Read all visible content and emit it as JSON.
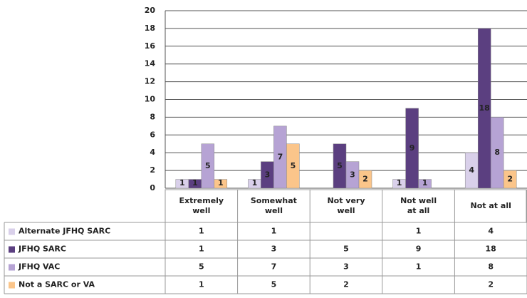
{
  "chart_data": {
    "type": "bar",
    "categories": [
      "Extremely well",
      "Somewhat well",
      "Not very well",
      "Not well at all",
      "Not at all"
    ],
    "series": [
      {
        "name": "Alternate JFHQ SARC",
        "color": "#d9d0ea",
        "values": [
          1,
          1,
          null,
          1,
          4
        ]
      },
      {
        "name": "JFHQ SARC",
        "color": "#5b3f80",
        "values": [
          1,
          3,
          5,
          9,
          18
        ]
      },
      {
        "name": "JFHQ VAC",
        "color": "#b6a3d4",
        "values": [
          5,
          7,
          3,
          1,
          8
        ]
      },
      {
        "name": "Not a SARC or VA",
        "color": "#fbc58a",
        "values": [
          1,
          5,
          2,
          null,
          2
        ]
      }
    ],
    "ylim": [
      0,
      20
    ],
    "yticks": [
      0,
      2,
      4,
      6,
      8,
      10,
      12,
      14,
      16,
      18,
      20
    ],
    "grid": true
  }
}
